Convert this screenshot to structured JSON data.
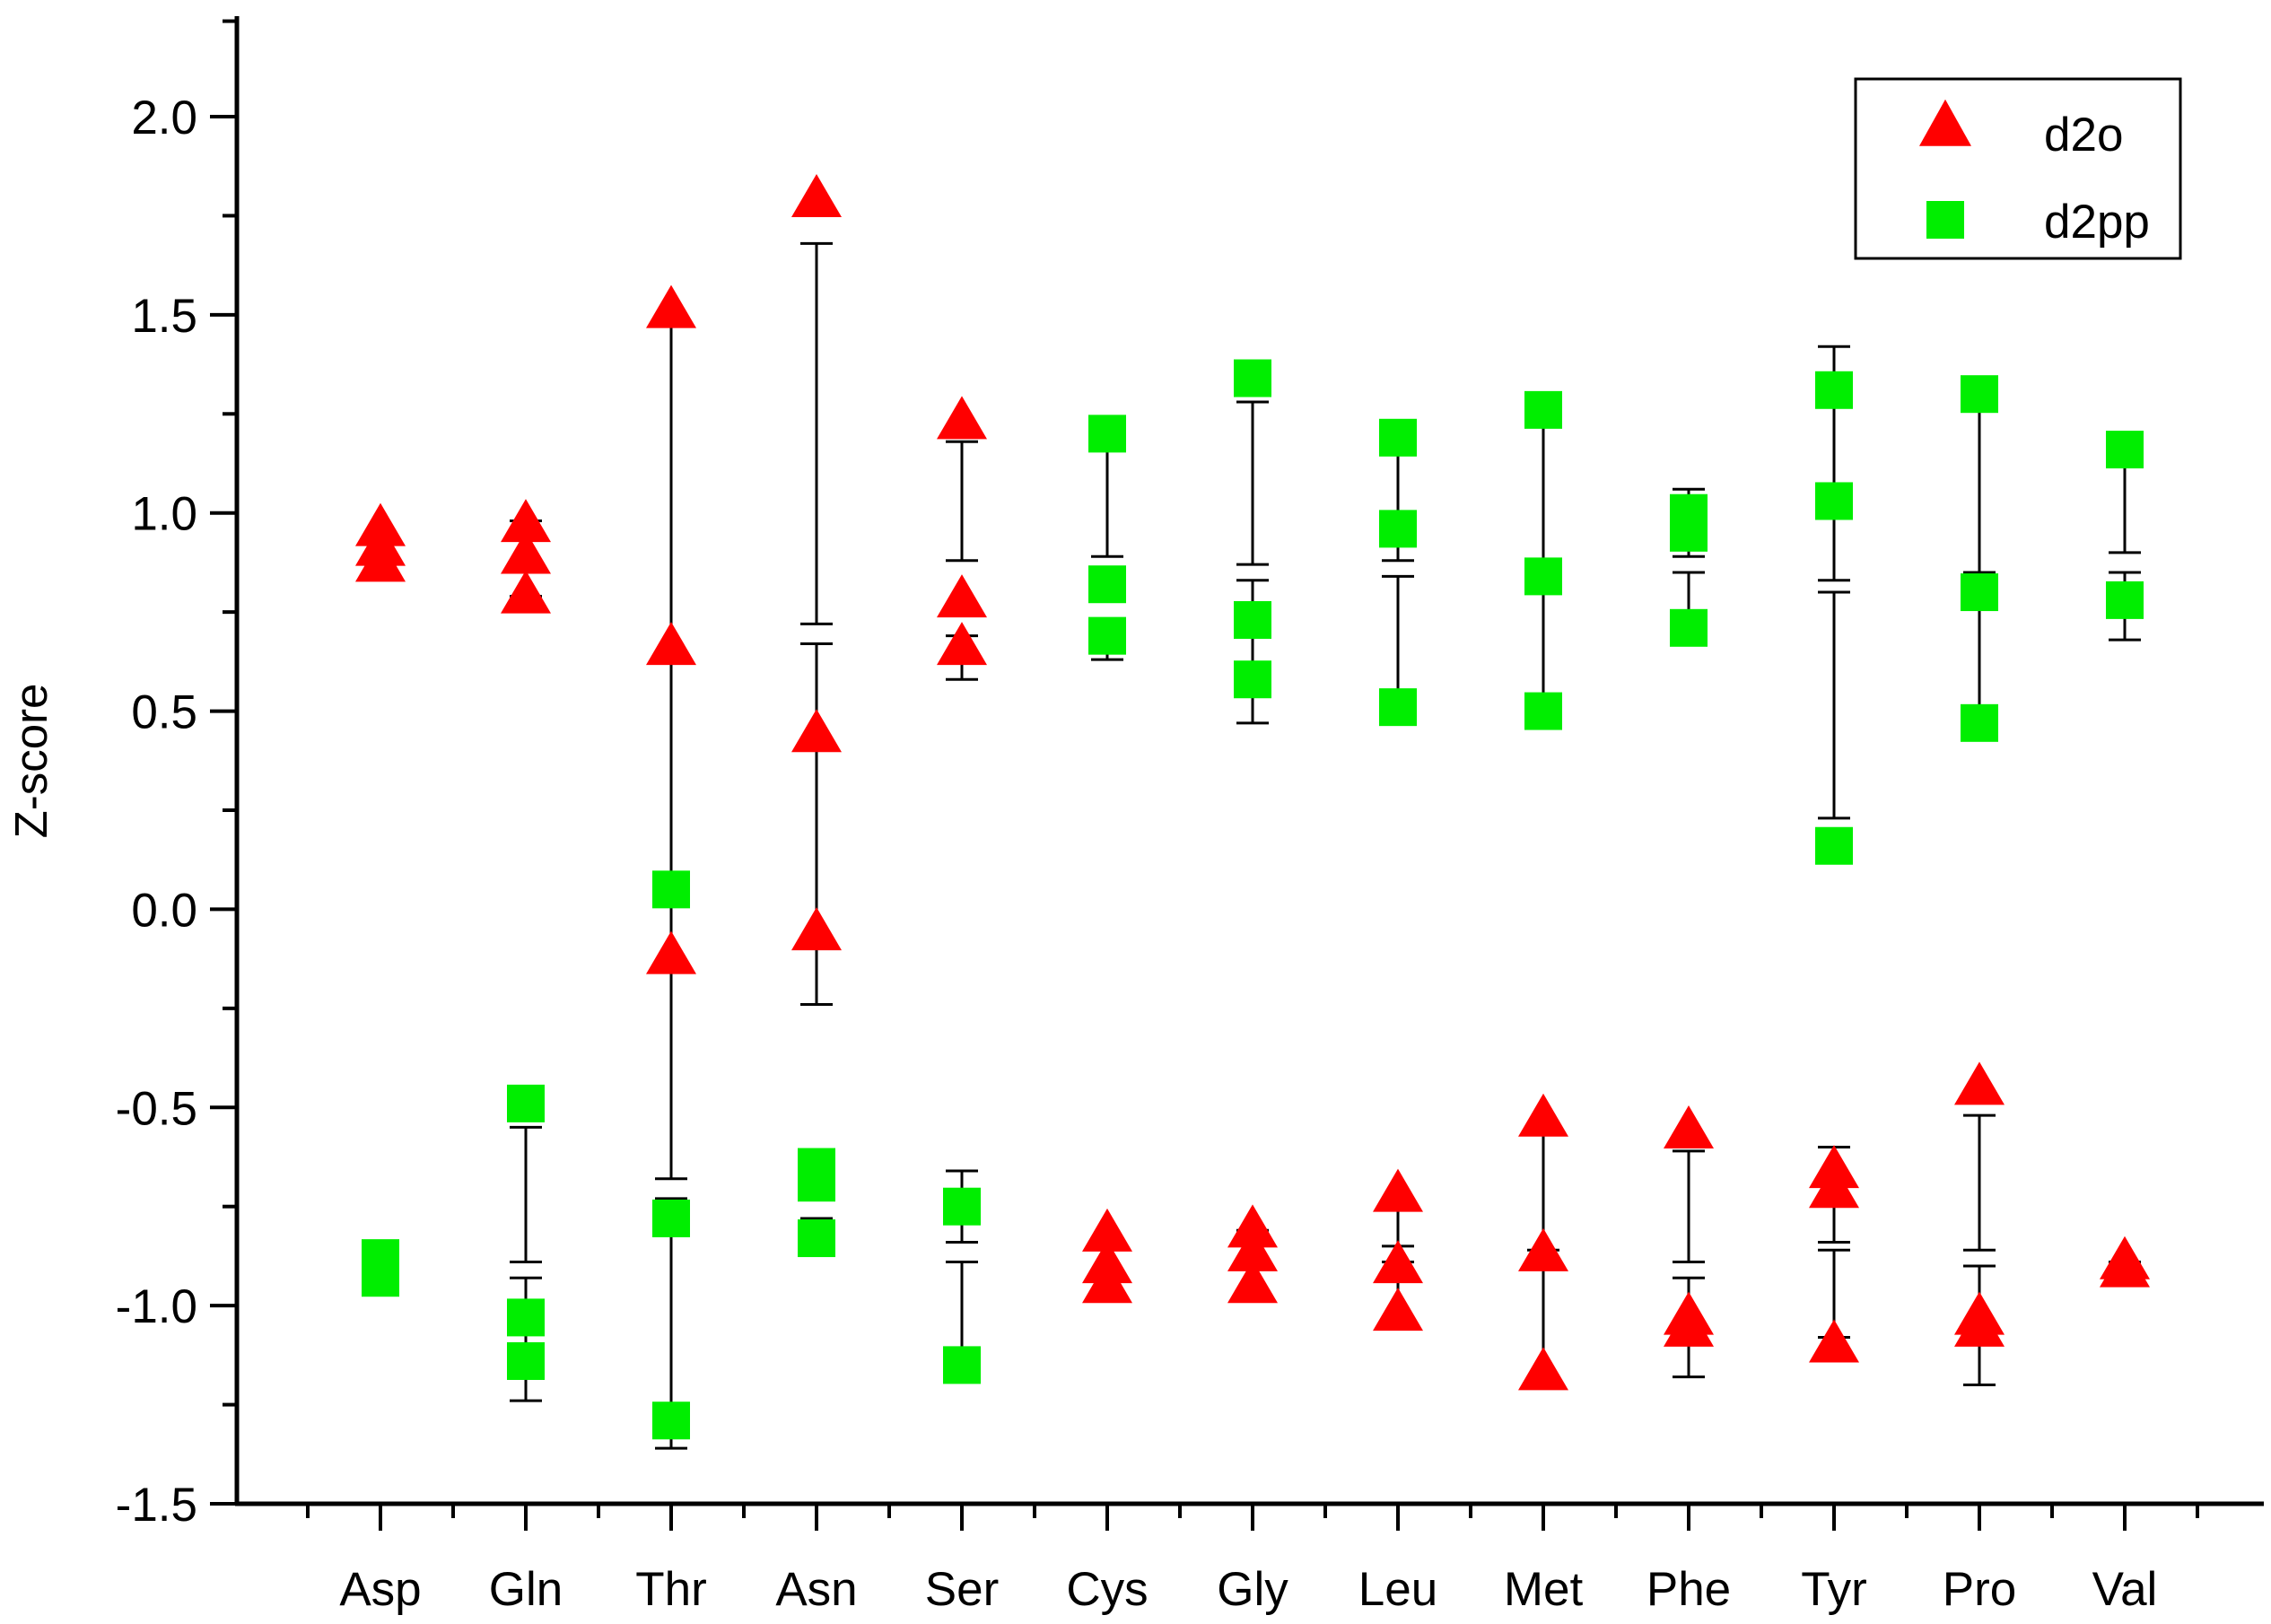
{
  "chart_data": {
    "type": "scatter",
    "title": "",
    "xlabel": "",
    "ylabel": "Z-score",
    "ylim": [
      -1.5,
      2.25
    ],
    "yticks": [
      "-1.5",
      "-1.0",
      "-0.5",
      "0.0",
      "0.5",
      "1.0",
      "1.5",
      "2.0"
    ],
    "categories": [
      "Asp",
      "Gln",
      "Thr",
      "Asn",
      "Ser",
      "Cys",
      "Gly",
      "Leu",
      "Met",
      "Phe",
      "Tyr",
      "Pro",
      "Val"
    ],
    "legend_position": "top-right",
    "series": [
      {
        "name": "d2o",
        "marker": "triangle",
        "color": "#ff0000",
        "points": [
          [
            0,
            0.96
          ],
          [
            0,
            0.91
          ],
          [
            0,
            0.87
          ],
          [
            1,
            0.97
          ],
          [
            1,
            0.89
          ],
          [
            1,
            0.79
          ],
          [
            2,
            1.51
          ],
          [
            2,
            0.66
          ],
          [
            2,
            -0.12
          ],
          [
            3,
            1.79
          ],
          [
            3,
            0.44
          ],
          [
            3,
            -0.06
          ],
          [
            4,
            1.23
          ],
          [
            4,
            0.78
          ],
          [
            4,
            0.66
          ],
          [
            5,
            -0.82
          ],
          [
            5,
            -0.9
          ],
          [
            5,
            -0.95
          ],
          [
            6,
            -0.81
          ],
          [
            6,
            -0.87
          ],
          [
            6,
            -0.95
          ],
          [
            7,
            -0.72
          ],
          [
            7,
            -0.9
          ],
          [
            7,
            -1.02
          ],
          [
            8,
            -0.53
          ],
          [
            8,
            -0.87
          ],
          [
            8,
            -1.17
          ],
          [
            9,
            -0.56
          ],
          [
            9,
            -1.03
          ],
          [
            9,
            -1.06
          ],
          [
            10,
            -0.66
          ],
          [
            10,
            -0.71
          ],
          [
            10,
            -1.1
          ],
          [
            11,
            -0.45
          ],
          [
            11,
            -1.03
          ],
          [
            11,
            -1.06
          ],
          [
            12,
            -0.89
          ],
          [
            12,
            -0.91
          ]
        ]
      },
      {
        "name": "d2pp",
        "marker": "square",
        "color": "#00ee00",
        "points": [
          [
            0,
            -0.88
          ],
          [
            0,
            -0.93
          ],
          [
            1,
            -0.49
          ],
          [
            1,
            -1.03
          ],
          [
            1,
            -1.14
          ],
          [
            2,
            0.05
          ],
          [
            2,
            -0.78
          ],
          [
            2,
            -1.29
          ],
          [
            3,
            -0.65
          ],
          [
            3,
            -0.69
          ],
          [
            3,
            -0.83
          ],
          [
            4,
            -0.75
          ],
          [
            4,
            -1.15
          ],
          [
            5,
            1.2
          ],
          [
            5,
            0.82
          ],
          [
            5,
            0.69
          ],
          [
            6,
            1.34
          ],
          [
            6,
            0.73
          ],
          [
            6,
            0.58
          ],
          [
            7,
            1.19
          ],
          [
            7,
            0.96
          ],
          [
            7,
            0.51
          ],
          [
            8,
            1.26
          ],
          [
            8,
            0.84
          ],
          [
            8,
            0.5
          ],
          [
            9,
            1.0
          ],
          [
            9,
            0.95
          ],
          [
            9,
            0.71
          ],
          [
            10,
            1.31
          ],
          [
            10,
            1.03
          ],
          [
            10,
            0.16
          ],
          [
            11,
            1.3
          ],
          [
            11,
            0.8
          ],
          [
            11,
            0.47
          ],
          [
            12,
            1.16
          ],
          [
            12,
            0.78
          ]
        ]
      }
    ],
    "error_bars": [
      [
        0,
        0.87,
        0.95
      ],
      [
        0,
        -0.89,
        -0.94
      ],
      [
        1,
        0.79,
        0.98
      ],
      [
        1,
        -0.55,
        -0.89
      ],
      [
        1,
        -0.93,
        -1.24
      ],
      [
        2,
        -0.68,
        1.49
      ],
      [
        2,
        -0.73,
        -1.36
      ],
      [
        3,
        0.72,
        1.68
      ],
      [
        3,
        -0.24,
        0.67
      ],
      [
        3,
        -0.63,
        -0.69
      ],
      [
        3,
        -0.78,
        -0.83
      ],
      [
        4,
        0.88,
        1.18
      ],
      [
        4,
        0.58,
        0.69
      ],
      [
        4,
        -0.66,
        -0.84
      ],
      [
        4,
        -0.89,
        -1.12
      ],
      [
        5,
        1.16,
        0.89
      ],
      [
        5,
        0.63,
        0.73
      ],
      [
        5,
        -0.83,
        -0.97
      ],
      [
        6,
        0.87,
        1.28
      ],
      [
        6,
        0.47,
        0.83
      ],
      [
        6,
        -0.81,
        -0.97
      ],
      [
        7,
        0.88,
        1.23
      ],
      [
        7,
        0.52,
        0.84
      ],
      [
        7,
        -0.74,
        -0.85
      ],
      [
        7,
        -0.89,
        -1.04
      ],
      [
        8,
        0.86,
        1.24
      ],
      [
        8,
        0.47,
        0.82
      ],
      [
        8,
        -0.55,
        -0.86
      ],
      [
        8,
        -0.88,
        -1.19
      ],
      [
        9,
        0.89,
        1.06
      ],
      [
        9,
        0.71,
        0.85
      ],
      [
        9,
        -0.61,
        -0.89
      ],
      [
        9,
        -0.93,
        -1.18
      ],
      [
        10,
        0.83,
        1.42
      ],
      [
        10,
        0.23,
        0.8
      ],
      [
        10,
        -0.6,
        -0.84
      ],
      [
        10,
        -0.86,
        -1.08
      ],
      [
        11,
        0.85,
        1.27
      ],
      [
        11,
        0.43,
        0.8
      ],
      [
        11,
        -0.52,
        -0.86
      ],
      [
        11,
        -0.9,
        -1.2
      ],
      [
        12,
        0.9,
        1.12
      ],
      [
        12,
        0.68,
        0.85
      ],
      [
        12,
        -0.89,
        -0.92
      ]
    ]
  }
}
